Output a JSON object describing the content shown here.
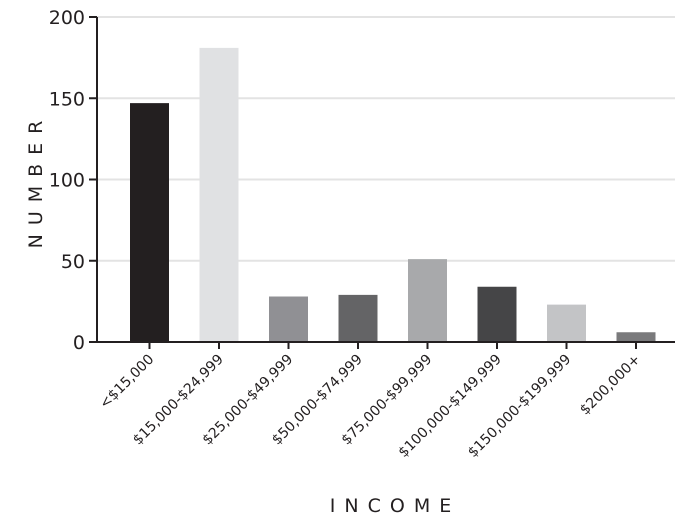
{
  "chart_data": {
    "type": "bar",
    "title": "",
    "xlabel": "INCOME",
    "ylabel": "NUMBER",
    "categories": [
      "<$15,000",
      "$15,000-$24,999",
      "$25,000-$49,999",
      "$50,000-$74,999",
      "$75,000-$99,999",
      "$100,000-$149,999",
      "$150,000-$199,999",
      "$200,000+"
    ],
    "values": [
      147,
      181,
      28,
      29,
      51,
      34,
      23,
      6
    ],
    "bar_colors": [
      "#231f20",
      "#e0e1e3",
      "#909094",
      "#646466",
      "#a8a9ab",
      "#454547",
      "#c3c4c6",
      "#7a7a7c"
    ],
    "ylim": [
      0,
      200
    ],
    "yticks": [
      0,
      50,
      100,
      150,
      200
    ],
    "grid": true,
    "legend": "none"
  }
}
